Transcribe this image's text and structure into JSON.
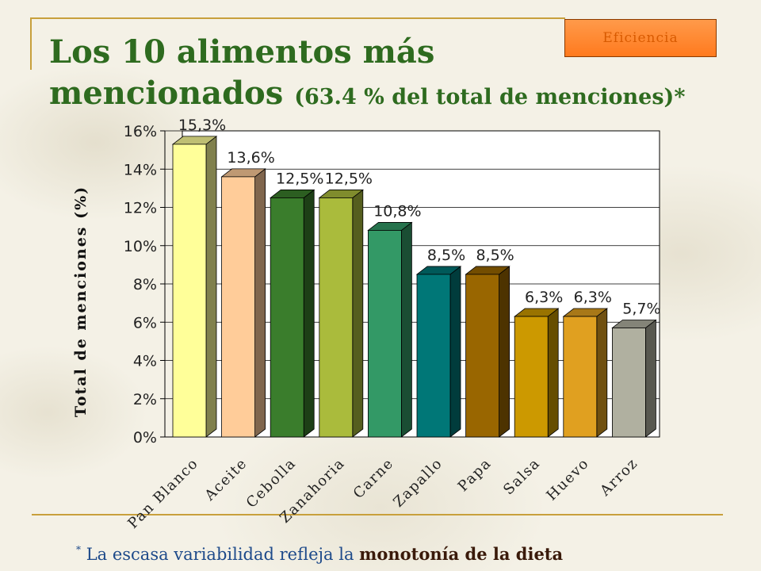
{
  "badge": "Eficiencia",
  "title": {
    "line1": "Los 10 alimentos más",
    "line2": "mencionados",
    "line2_sub": "(63.4 % del total de menciones)*"
  },
  "footnote": {
    "star": "*",
    "text": "La escasa variabilidad refleja la",
    "emphasis": "monotonía de  la dieta"
  },
  "chart_data": {
    "type": "bar",
    "ylabel": "Total de menciones (%)",
    "xlabel": "",
    "ylim": [
      0,
      16
    ],
    "yticks": [
      "0%",
      "2%",
      "4%",
      "6%",
      "8%",
      "10%",
      "12%",
      "14%",
      "16%"
    ],
    "ytick_values": [
      0,
      2,
      4,
      6,
      8,
      10,
      12,
      14,
      16
    ],
    "grid": true,
    "categories": [
      "Pan Blanco",
      "Aceite",
      "Cebolla",
      "Zanahoria",
      "Carne",
      "Zapallo",
      "Papa",
      "Salsa",
      "Huevo",
      "Arroz"
    ],
    "values": [
      15.3,
      13.6,
      12.5,
      12.5,
      10.8,
      8.5,
      8.5,
      6.3,
      6.3,
      5.7
    ],
    "labels": [
      "15,3%",
      "13,6%",
      "12,5%",
      "12,5%",
      "10,8%",
      "8,5%",
      "8,5%",
      "6,3%",
      "6,3%",
      "5,7%"
    ],
    "colors": [
      "#ffff99",
      "#ffcc99",
      "#3a7d2c",
      "#aabb3c",
      "#339966",
      "#007777",
      "#996600",
      "#cc9900",
      "#e0a020",
      "#b0b0a0"
    ]
  }
}
